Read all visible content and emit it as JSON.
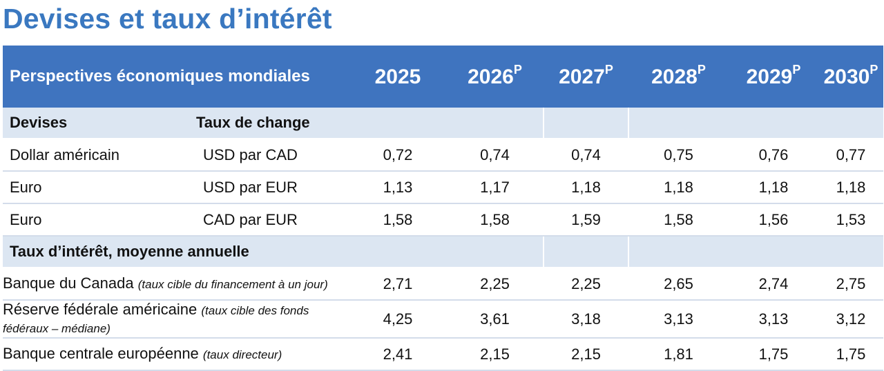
{
  "title": "Devises et taux d’intérêt",
  "header": {
    "label": "Perspectives économiques mondiales",
    "years": [
      {
        "year": "2025",
        "sup": ""
      },
      {
        "year": "2026",
        "sup": "P"
      },
      {
        "year": "2027",
        "sup": "P"
      },
      {
        "year": "2028",
        "sup": "P"
      },
      {
        "year": "2029",
        "sup": "P"
      },
      {
        "year": "2030",
        "sup": "P"
      }
    ]
  },
  "currencies": {
    "section_label": "Devises",
    "section_label_2": "Taux de change",
    "rows": [
      {
        "name": "Dollar américain",
        "unit": "USD par CAD",
        "values": [
          "0,72",
          "0,74",
          "0,74",
          "0,75",
          "0,76",
          "0,77"
        ]
      },
      {
        "name": "Euro",
        "unit": "USD par EUR",
        "values": [
          "1,13",
          "1,17",
          "1,18",
          "1,18",
          "1,18",
          "1,18"
        ]
      },
      {
        "name": "Euro",
        "unit": "CAD par EUR",
        "values": [
          "1,58",
          "1,58",
          "1,59",
          "1,58",
          "1,56",
          "1,53"
        ]
      }
    ]
  },
  "rates": {
    "section_label": "Taux d’intérêt, moyenne annuelle",
    "rows": [
      {
        "name": "Banque du Canada",
        "note": "(taux cible du financement à un jour)",
        "values": [
          "2,71",
          "2,25",
          "2,25",
          "2,65",
          "2,74",
          "2,75"
        ]
      },
      {
        "name": "Réserve fédérale américaine",
        "note": "(taux cible des fonds fédéraux – médiane)",
        "values": [
          "4,25",
          "3,61",
          "3,18",
          "3,13",
          "3,13",
          "3,12"
        ]
      },
      {
        "name": "Banque centrale européenne",
        "note": "(taux directeur)",
        "values": [
          "2,41",
          "2,15",
          "2,15",
          "1,81",
          "1,75",
          "1,75"
        ]
      }
    ]
  }
}
